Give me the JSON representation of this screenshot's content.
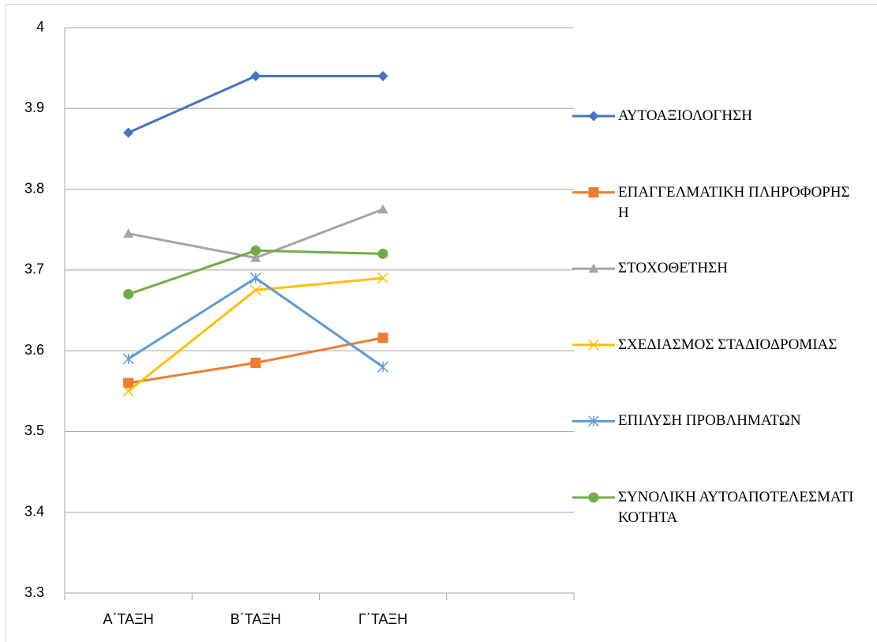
{
  "chart_data": {
    "type": "line",
    "categories": [
      "Α΄ΤΑΞΗ",
      "Β΄ΤΑΞΗ",
      "Γ΄ΤΑΞΗ",
      null
    ],
    "series": [
      {
        "name": "ΑΥΤΟΑΞΙΟΛΟΓΗΣΗ",
        "color": "#4472c4",
        "marker": "diamond",
        "values": [
          3.87,
          3.94,
          3.94,
          null
        ]
      },
      {
        "name": "ΕΠΑΓΓΕΛΜΑΤΙΚΗ ΠΛΗΡΟΦΟΡΗΣΗ",
        "color": "#ed7d31",
        "marker": "square",
        "values": [
          3.56,
          3.585,
          3.616,
          null
        ]
      },
      {
        "name": "ΣΤΟΧΟΘΕΤΗΣΗ",
        "color": "#a5a5a5",
        "marker": "triangle",
        "values": [
          3.745,
          3.715,
          3.775,
          null
        ]
      },
      {
        "name": "ΣΧΕΔΙΑΣΜΟΣ ΣΤΑΔΙΟΔΡΟΜΙΑΣ",
        "color": "#ffc000",
        "marker": "x",
        "values": [
          3.55,
          3.675,
          3.69,
          null
        ]
      },
      {
        "name": "ΕΠΙΛΥΣΗ ΠΡΟΒΛΗΜΑΤΩΝ",
        "color": "#5b9bd5",
        "marker": "star",
        "values": [
          3.59,
          3.69,
          3.58,
          null
        ]
      },
      {
        "name": "ΣΥΝΟΛΙΚΗ ΑΥΤΟΑΠΟΤΕΛΕΣΜΑΤΙΚΟΤΗΤΑ",
        "color": "#70ad47",
        "marker": "circle",
        "values": [
          3.67,
          3.724,
          3.72,
          null
        ]
      }
    ],
    "ylim": [
      3.3,
      4
    ],
    "yticks": [
      3.3,
      3.4,
      3.5,
      3.6,
      3.7,
      3.8,
      3.9,
      4
    ],
    "grid": true,
    "legend": "right"
  }
}
